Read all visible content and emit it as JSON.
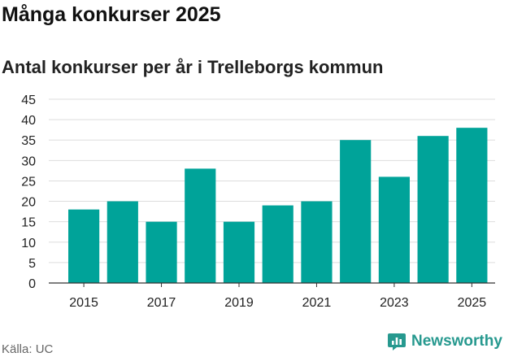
{
  "header": {
    "title": "Många konkurser 2025",
    "subtitle": "Antal konkurser per år i Trelleborgs kommun"
  },
  "footer": {
    "source": "Källa: UC",
    "brand": "Newsworthy",
    "brand_icon": "chart-logo-icon"
  },
  "colors": {
    "bar": "#00a399",
    "grid": "#dddddd",
    "axis": "#333333",
    "brand": "#27998f"
  },
  "chart_data": {
    "type": "bar",
    "title": "Många konkurser 2025",
    "subtitle": "Antal konkurser per år i Trelleborgs kommun",
    "categories": [
      "2015",
      "2016",
      "2017",
      "2018",
      "2019",
      "2020",
      "2021",
      "2022",
      "2023",
      "2024",
      "2025"
    ],
    "x_tick_labels": [
      "2015",
      "2017",
      "2019",
      "2021",
      "2023",
      "2025"
    ],
    "values": [
      18,
      20,
      15,
      28,
      15,
      19,
      20,
      35,
      26,
      36,
      38
    ],
    "ylim": [
      0,
      45
    ],
    "y_ticks": [
      0,
      5,
      10,
      15,
      20,
      25,
      30,
      35,
      40,
      45
    ],
    "grid": true,
    "legend": "none"
  }
}
